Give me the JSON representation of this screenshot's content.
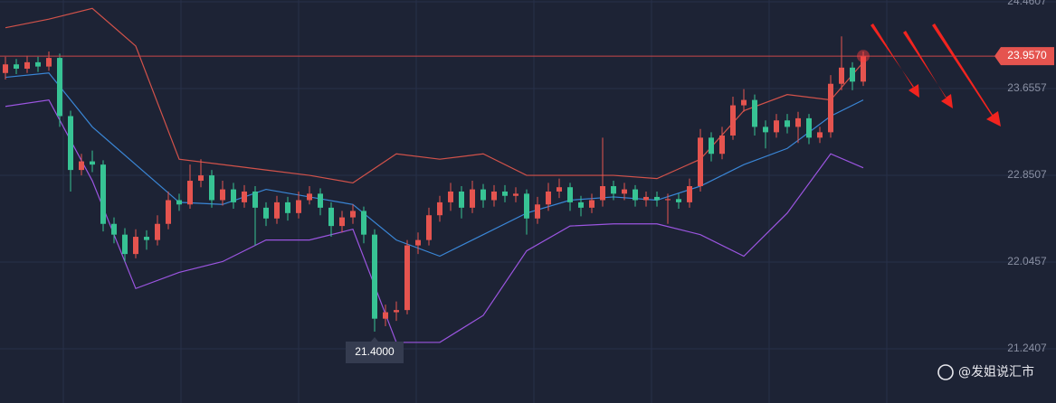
{
  "chart_data": {
    "type": "candlestick",
    "ylim": [
      20.7375,
      24.4775
    ],
    "yticks": [
      24.4607,
      23.6557,
      22.8507,
      22.0457,
      21.2407
    ],
    "grid": true,
    "up_color": "#e5544f",
    "down_color": "#37c394",
    "open": [
      23.8,
      23.88,
      23.84,
      23.9,
      23.86,
      23.94,
      23.4,
      22.9,
      22.98,
      22.95,
      22.4,
      22.3,
      22.12,
      22.28,
      22.25,
      22.4,
      22.62,
      22.58,
      22.8,
      22.85,
      22.62,
      22.72,
      22.6,
      22.7,
      22.55,
      22.45,
      22.6,
      22.5,
      22.62,
      22.68,
      22.55,
      22.38,
      22.46,
      22.52,
      22.3,
      21.52,
      21.58,
      21.6,
      22.2,
      22.25,
      22.48,
      22.6,
      22.7,
      22.55,
      22.72,
      22.62,
      22.7,
      22.66,
      22.68,
      22.45,
      22.58,
      22.7,
      22.74,
      22.6,
      22.55,
      22.62,
      22.75,
      22.68,
      22.72,
      22.62,
      22.65,
      22.62,
      22.63,
      22.6,
      22.75,
      23.2,
      23.05,
      23.22,
      23.5,
      23.55,
      23.3,
      23.25,
      23.36,
      23.3,
      23.38,
      23.2,
      23.25,
      23.7,
      23.85,
      23.72
    ],
    "high": [
      23.95,
      23.93,
      23.96,
      23.95,
      24.0,
      23.98,
      23.45,
      23.05,
      23.08,
      22.99,
      22.46,
      22.36,
      22.35,
      22.34,
      22.48,
      22.7,
      22.68,
      22.95,
      23.0,
      22.9,
      22.8,
      22.78,
      22.76,
      22.75,
      22.6,
      22.66,
      22.65,
      22.7,
      22.75,
      22.73,
      22.6,
      22.52,
      22.58,
      22.56,
      22.35,
      21.65,
      21.68,
      22.25,
      22.32,
      22.55,
      22.66,
      22.78,
      22.75,
      22.8,
      22.77,
      22.76,
      22.76,
      22.74,
      22.72,
      22.65,
      22.78,
      22.82,
      22.78,
      22.66,
      22.68,
      23.2,
      22.8,
      22.78,
      22.76,
      22.7,
      22.7,
      22.68,
      22.68,
      22.82,
      23.28,
      23.25,
      23.3,
      23.58,
      23.65,
      23.6,
      23.36,
      23.42,
      23.42,
      23.44,
      23.42,
      23.3,
      23.78,
      24.14,
      23.9,
      24.0
    ],
    "low": [
      23.74,
      23.79,
      23.8,
      23.81,
      23.82,
      23.3,
      22.7,
      22.85,
      22.88,
      22.33,
      22.22,
      22.05,
      22.08,
      22.16,
      22.2,
      22.35,
      22.52,
      22.54,
      22.74,
      22.55,
      22.57,
      22.54,
      22.55,
      22.2,
      22.38,
      22.4,
      22.43,
      22.45,
      22.58,
      22.48,
      22.28,
      22.32,
      22.4,
      22.22,
      21.4,
      21.45,
      21.5,
      21.56,
      22.12,
      22.2,
      22.42,
      22.52,
      22.45,
      22.5,
      22.55,
      22.56,
      22.6,
      22.6,
      22.3,
      22.4,
      22.52,
      22.64,
      22.52,
      22.47,
      22.5,
      22.56,
      22.62,
      22.62,
      22.56,
      22.56,
      22.56,
      22.4,
      22.54,
      22.55,
      22.7,
      22.98,
      23.0,
      23.18,
      23.44,
      23.22,
      23.1,
      23.2,
      23.24,
      23.15,
      23.14,
      23.15,
      23.2,
      23.64,
      23.64,
      23.68
    ],
    "close": [
      23.88,
      23.84,
      23.9,
      23.86,
      23.94,
      23.4,
      22.9,
      22.98,
      22.95,
      22.4,
      22.3,
      22.12,
      22.28,
      22.25,
      22.4,
      22.62,
      22.58,
      22.8,
      22.85,
      22.62,
      22.72,
      22.6,
      22.7,
      22.55,
      22.45,
      22.6,
      22.5,
      22.62,
      22.68,
      22.55,
      22.38,
      22.46,
      22.52,
      22.3,
      21.52,
      21.58,
      21.6,
      22.2,
      22.25,
      22.48,
      22.6,
      22.7,
      22.55,
      22.72,
      22.62,
      22.7,
      22.66,
      22.68,
      22.45,
      22.58,
      22.7,
      22.74,
      22.6,
      22.55,
      22.62,
      22.75,
      22.68,
      22.72,
      22.62,
      22.65,
      22.62,
      22.63,
      22.6,
      22.75,
      23.2,
      23.05,
      23.22,
      23.5,
      23.55,
      23.3,
      23.25,
      23.36,
      23.3,
      23.38,
      23.2,
      23.25,
      23.7,
      23.85,
      23.72,
      23.957
    ],
    "bands": [
      {
        "color": "#d2524a",
        "x": [
          0,
          4,
          8,
          12,
          16,
          20,
          24,
          28,
          32,
          36,
          40,
          44,
          48,
          52,
          56,
          60,
          64,
          68,
          72,
          76,
          79
        ],
        "values": [
          24.22,
          24.3,
          24.4,
          24.05,
          23.0,
          22.95,
          22.9,
          22.85,
          22.78,
          23.05,
          23.0,
          23.05,
          22.85,
          22.85,
          22.85,
          22.82,
          23.0,
          23.45,
          23.6,
          23.55,
          23.9
        ]
      },
      {
        "color": "#3a86d6",
        "x": [
          0,
          4,
          8,
          12,
          16,
          20,
          24,
          28,
          32,
          36,
          40,
          44,
          48,
          52,
          56,
          60,
          64,
          68,
          72,
          76,
          79
        ],
        "values": [
          23.76,
          23.8,
          23.3,
          22.95,
          22.6,
          22.58,
          22.72,
          22.65,
          22.58,
          22.25,
          22.1,
          22.3,
          22.5,
          22.62,
          22.65,
          22.62,
          22.75,
          22.95,
          23.1,
          23.4,
          23.55
        ]
      },
      {
        "color": "#9b55e0",
        "x": [
          0,
          4,
          8,
          12,
          16,
          20,
          24,
          28,
          32,
          36,
          40,
          44,
          48,
          52,
          56,
          60,
          64,
          68,
          72,
          76,
          79
        ],
        "values": [
          23.49,
          23.55,
          22.8,
          21.8,
          21.95,
          22.05,
          22.25,
          22.25,
          22.35,
          21.3,
          21.3,
          21.55,
          22.15,
          22.38,
          22.4,
          22.4,
          22.3,
          22.1,
          22.5,
          23.05,
          22.92
        ]
      }
    ],
    "last_price": {
      "value": 23.957,
      "label": "23.9570"
    },
    "low_marker": {
      "value": 21.4,
      "label": "21.4000"
    }
  },
  "watermark": "@发姐说汇市"
}
